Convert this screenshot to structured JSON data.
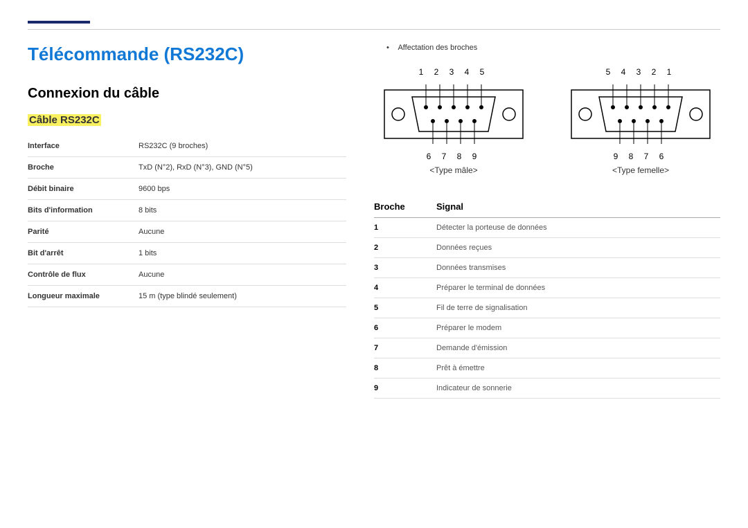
{
  "header": {
    "bar_color": "#1a2a6c",
    "title": "Télécommande (RS232C)"
  },
  "left": {
    "section_title": "Connexion du câble",
    "sub_title": "Câble RS232C",
    "spec_rows": [
      {
        "label": "Interface",
        "value": "RS232C (9 broches)"
      },
      {
        "label": "Broche",
        "value": "TxD (N°2), RxD (N°3), GND (N°5)"
      },
      {
        "label": "Débit binaire",
        "value": "9600 bps"
      },
      {
        "label": "Bits d'information",
        "value": "8 bits"
      },
      {
        "label": "Parité",
        "value": "Aucune"
      },
      {
        "label": "Bit d'arrêt",
        "value": "1 bits"
      },
      {
        "label": "Contrôle de flux",
        "value": "Aucune"
      },
      {
        "label": "Longueur maximale",
        "value": "15 m (type blindé seulement)"
      }
    ]
  },
  "right": {
    "bullet": "Affectation des broches",
    "male": {
      "top": "1 2 3 4 5",
      "bottom": "6 7 8 9",
      "label": "<Type mâle>"
    },
    "female": {
      "top": "5 4 3 2 1",
      "bottom": "9 8 7 6",
      "label": "<Type femelle>"
    },
    "signal_header": {
      "pin": "Broche",
      "signal": "Signal"
    },
    "signal_rows": [
      {
        "pin": "1",
        "signal": "Détecter la porteuse de données"
      },
      {
        "pin": "2",
        "signal": "Données reçues"
      },
      {
        "pin": "3",
        "signal": "Données transmises"
      },
      {
        "pin": "4",
        "signal": "Préparer le terminal de données"
      },
      {
        "pin": "5",
        "signal": "Fil de terre de signalisation"
      },
      {
        "pin": "6",
        "signal": "Préparer le modem"
      },
      {
        "pin": "7",
        "signal": "Demande d'émission"
      },
      {
        "pin": "8",
        "signal": "Prêt à émettre"
      },
      {
        "pin": "9",
        "signal": "Indicateur de sonnerie"
      }
    ]
  },
  "diagram": {
    "outline_color": "#000000",
    "pin_fill": "#000000",
    "bg": "#ffffff"
  }
}
